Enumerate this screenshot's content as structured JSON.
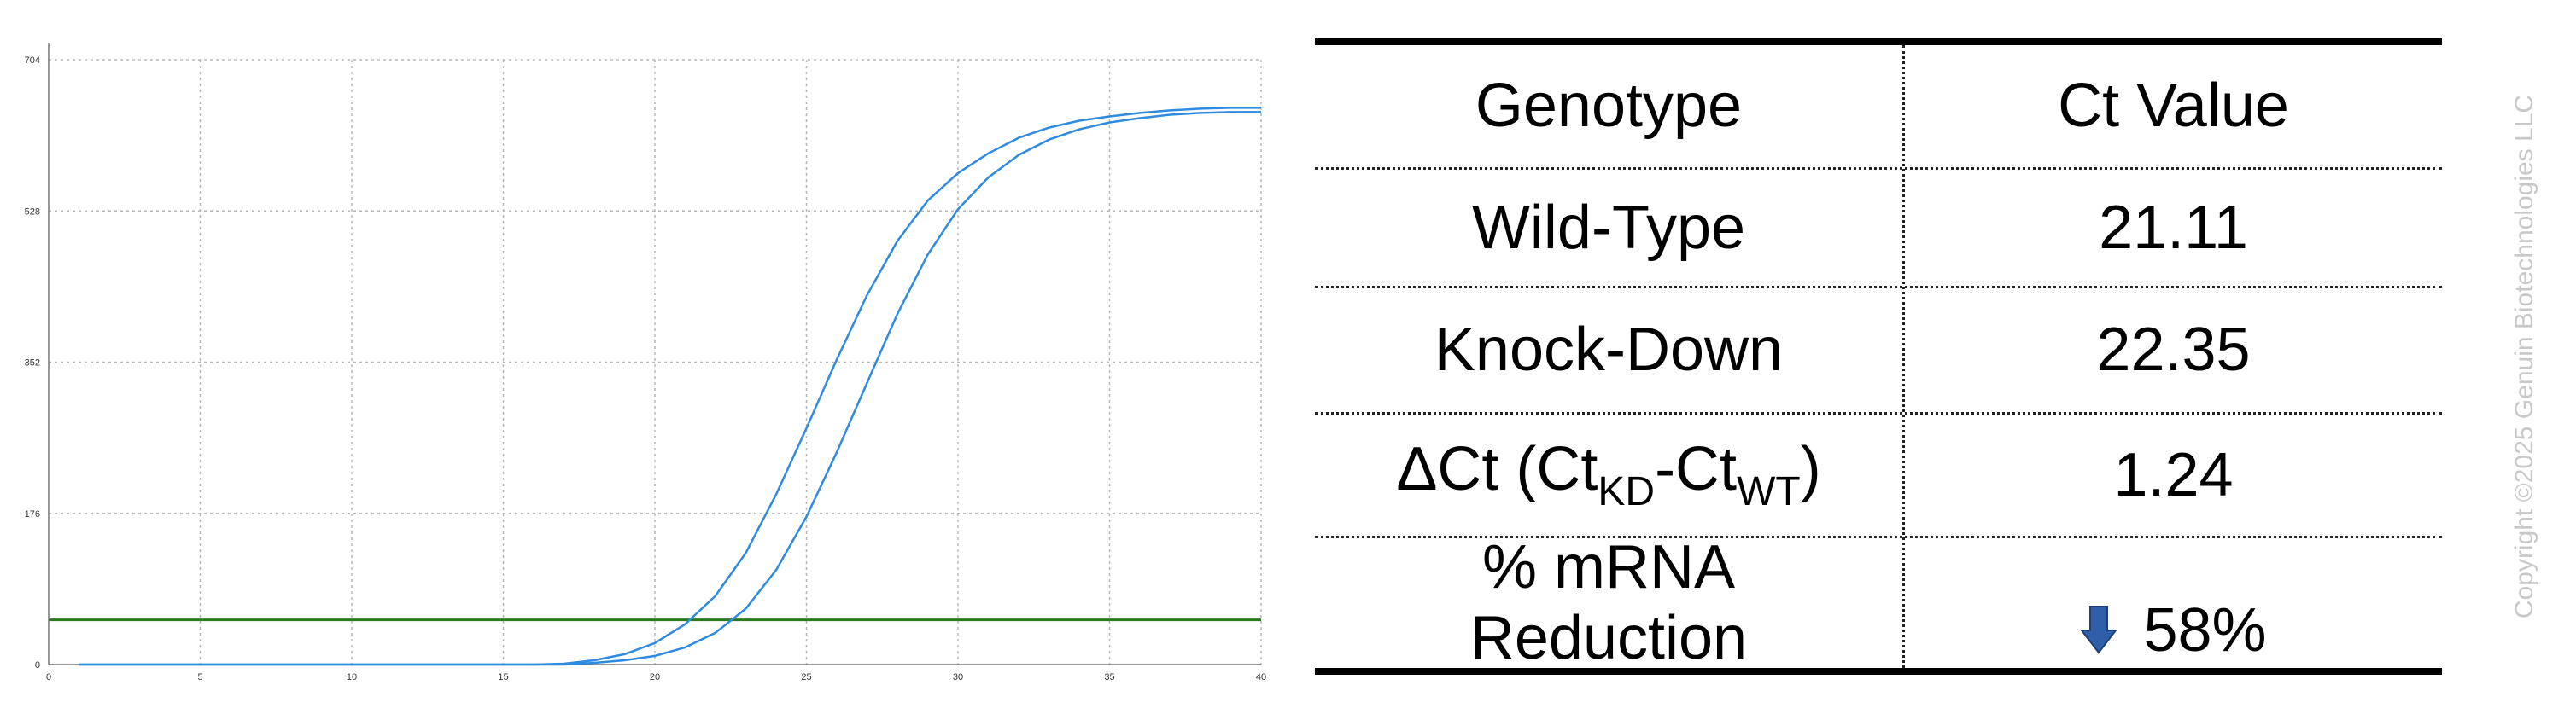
{
  "chart_data": {
    "type": "line",
    "xlim": [
      0,
      40
    ],
    "ylim": [
      0,
      704
    ],
    "x_ticks": [
      0,
      5,
      10,
      15,
      20,
      25,
      30,
      35,
      40
    ],
    "y_ticks": [
      0,
      176,
      352,
      528,
      704
    ],
    "grid": true,
    "threshold": 52,
    "series": [
      {
        "color": "#2f8be0",
        "x": [
          1,
          5,
          10,
          15,
          16,
          17,
          18,
          19,
          20,
          21,
          22,
          23,
          24,
          25,
          26,
          27,
          28,
          29,
          30,
          31,
          32,
          33,
          34,
          35,
          36,
          37,
          38,
          39,
          40
        ],
        "y": [
          0,
          0,
          0,
          0,
          0,
          1,
          5,
          12,
          25,
          47,
          80,
          130,
          198,
          275,
          355,
          430,
          493,
          540,
          572,
          595,
          613,
          625,
          633,
          638,
          642,
          645,
          647,
          648,
          648
        ]
      },
      {
        "color": "#2f8be0",
        "x": [
          1,
          5,
          10,
          15,
          16,
          17,
          18,
          19,
          20,
          21,
          22,
          23,
          24,
          25,
          26,
          27,
          28,
          29,
          30,
          31,
          32,
          33,
          34,
          35,
          36,
          37,
          38,
          39,
          40
        ],
        "y": [
          0,
          0,
          0,
          0,
          0,
          0,
          2,
          5,
          10,
          20,
          37,
          65,
          110,
          172,
          247,
          328,
          408,
          477,
          530,
          567,
          593,
          611,
          623,
          631,
          636,
          640,
          642,
          643,
          643
        ]
      }
    ],
    "threshold_color": "#2a7a1e"
  },
  "table": {
    "headers": [
      "Genotype",
      "Ct Value"
    ],
    "rows": [
      {
        "label": "Wild-Type",
        "value": "21.11"
      },
      {
        "label": "Knock-Down",
        "value": "22.35"
      }
    ],
    "delta_row": {
      "prefix": "ΔCt (Ct",
      "sub1": "KD",
      "mid": "-Ct",
      "sub2": "WT",
      "suffix": ")",
      "value": "1.24"
    },
    "reduction_row": {
      "label_line1": "% mRNA",
      "label_line2": "Reduction",
      "value": "58%",
      "icon": "down-arrow-icon",
      "icon_color": "#2e5fa8"
    }
  },
  "copyright": "Copyright ©2025 Genuin Biotechnologies LLC"
}
